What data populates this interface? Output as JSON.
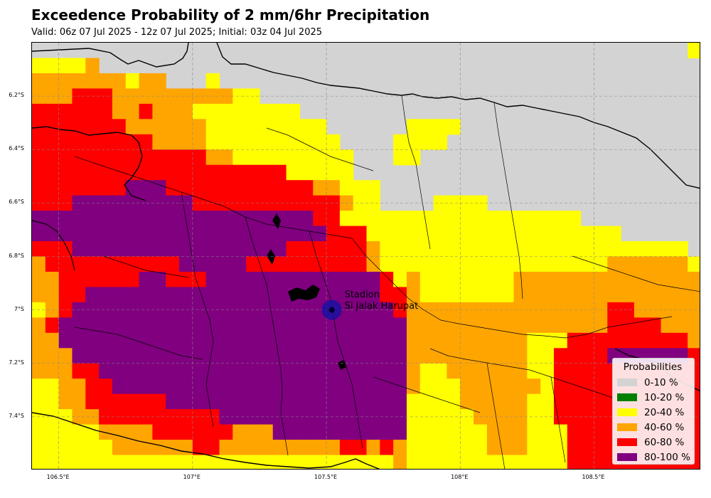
{
  "header": {
    "title": "Exceedence Probability of 2 mm/6hr Precipitation",
    "subtitle": "Valid: 06z 07 Jul 2025 - 12z 07 Jul 2025; Initial: 03z 04 Jul 2025"
  },
  "axes": {
    "lat_ticks": [
      "6.2°S",
      "6.4°S",
      "6.6°S",
      "6.8°S",
      "7°S",
      "7.2°S",
      "7.4°S"
    ],
    "lon_ticks": [
      "106.5°E",
      "107°E",
      "107.5°E",
      "108°E",
      "108.5°E"
    ],
    "lon_range": [
      106.4,
      108.9
    ],
    "lat_range": [
      -6.0,
      -7.6
    ],
    "gridlines": true
  },
  "station": {
    "line1": "Stadion",
    "line2": "Si Jalak Harupat",
    "lon": 107.52,
    "lat": -7.0,
    "color": "#1a0fa0"
  },
  "legend": {
    "title": "Probabilities",
    "items": [
      {
        "label": "0-10 %",
        "color": "#d3d3d3"
      },
      {
        "label": "10-20 %",
        "color": "#008000"
      },
      {
        "label": "20-40 %",
        "color": "#ffff00"
      },
      {
        "label": "40-60 %",
        "color": "#ffa500"
      },
      {
        "label": "60-80 %",
        "color": "#ff0000"
      },
      {
        "label": "80-100 %",
        "color": "#800080"
      }
    ]
  }
}
